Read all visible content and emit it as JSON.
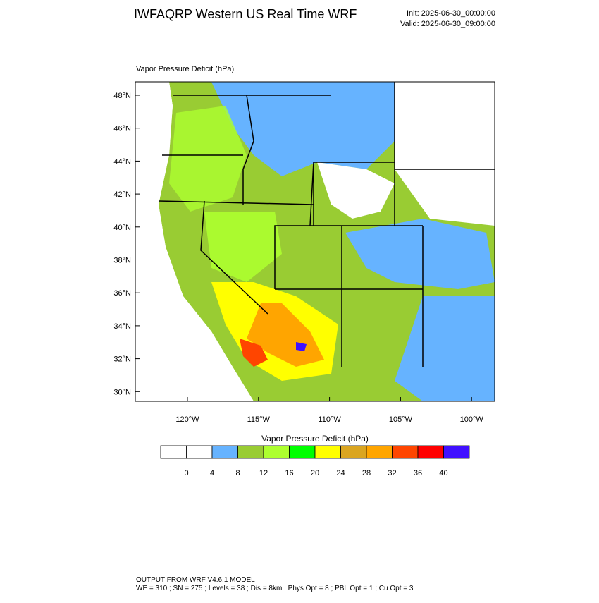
{
  "header": {
    "title": "IWFAQRP Western US Real Time WRF",
    "init": "Init: 2025-06-30_00:00:00",
    "valid": "Valid: 2025-06-30_09:00:00"
  },
  "map": {
    "panel_title": "Vapor Pressure Deficit   (hPa)",
    "lat_labels": [
      "48°N",
      "46°N",
      "44°N",
      "42°N",
      "40°N",
      "38°N",
      "36°N",
      "34°N",
      "32°N",
      "30°N"
    ],
    "lon_labels": [
      "120°W",
      "115°W",
      "110°W",
      "105°W",
      "100°W"
    ]
  },
  "legend": {
    "title": "Vapor Pressure Deficit  (hPa)",
    "colors": [
      "#ffffff",
      "#ffffff",
      "#66b3ff",
      "#99cc33",
      "#adff2f",
      "#00ff00",
      "#ffff00",
      "#daa520",
      "#ffa500",
      "#ff4500",
      "#ff0000",
      "#4010ff"
    ],
    "levels": [
      "0",
      "4",
      "8",
      "12",
      "16",
      "20",
      "24",
      "28",
      "32",
      "36",
      "40"
    ]
  },
  "footer": {
    "line1": "OUTPUT FROM WRF V4.6.1 MODEL",
    "line2": "WE = 310 ; SN = 275 ; Levels = 38 ; Dis = 8km ; Phys Opt = 8 ; PBL Opt = 1 ; Cu Opt = 3"
  }
}
